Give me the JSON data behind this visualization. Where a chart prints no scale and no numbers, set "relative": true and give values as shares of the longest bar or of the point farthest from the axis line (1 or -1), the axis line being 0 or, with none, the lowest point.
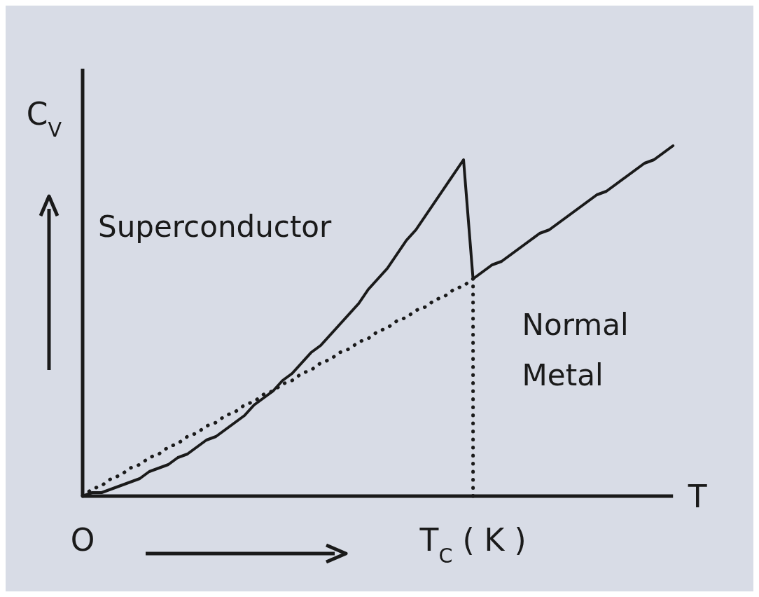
{
  "chart_data": {
    "type": "line",
    "relative": true,
    "xlabel": "T",
    "ylabel": "C$_{V}$",
    "categories": [
      "O",
      null,
      null,
      null,
      null,
      null,
      null,
      null,
      null,
      null,
      null,
      null,
      null,
      null,
      null,
      null,
      null,
      null,
      null,
      null,
      null,
      null,
      null,
      null,
      null,
      null,
      null,
      null,
      null,
      null,
      null,
      null,
      null,
      null,
      null,
      null,
      null,
      null,
      null,
      null,
      null,
      "T$_{C}$ ( K )",
      null,
      null,
      null,
      null,
      null,
      null,
      null,
      null,
      null,
      null,
      null,
      null,
      null,
      null,
      null,
      null,
      null,
      null,
      null,
      null,
      null
    ],
    "ref_lines": [
      {
        "axis": "x",
        "value": "T$_{C}$ ( K )",
        "line_style": "dotted",
        "color": "#1a1a1a"
      }
    ],
    "series": [
      {
        "name": "Superconductor",
        "color": "#1a1a1a",
        "values": [
          0,
          0.01,
          0.01,
          0.02,
          0.03,
          0.04,
          0.05,
          0.07,
          0.08,
          0.09,
          0.11,
          0.12,
          0.14,
          0.16,
          0.17,
          0.19,
          0.21,
          0.23,
          0.26,
          0.28,
          0.3,
          0.33,
          0.35,
          0.38,
          0.41,
          0.43,
          0.46,
          0.49,
          0.52,
          0.55,
          0.59,
          0.62,
          0.65,
          0.69,
          0.73,
          0.76,
          0.8,
          0.84,
          0.88,
          0.92,
          0.96,
          0.62,
          null,
          null,
          null,
          null,
          null,
          null,
          null,
          null,
          null,
          null,
          null,
          null,
          null,
          null,
          null,
          null,
          null,
          null,
          null,
          null,
          null
        ]
      },
      {
        "name": "Normal Metal",
        "color": "#1a1a1a",
        "values": [
          null,
          null,
          null,
          null,
          null,
          null,
          null,
          null,
          null,
          null,
          null,
          null,
          null,
          null,
          null,
          null,
          null,
          null,
          null,
          null,
          null,
          null,
          null,
          null,
          null,
          null,
          null,
          null,
          null,
          null,
          null,
          null,
          null,
          null,
          null,
          null,
          null,
          null,
          null,
          null,
          null,
          0.62,
          0.64,
          0.66,
          0.67,
          0.69,
          0.71,
          0.73,
          0.75,
          0.76,
          0.78,
          0.8,
          0.82,
          0.84,
          0.86,
          0.87,
          0.89,
          0.91,
          0.93,
          0.95,
          0.96,
          0.98,
          1.0
        ]
      },
      {
        "color": "#1a1a1a",
        "line_style": "dotted",
        "values": [
          0,
          0.02,
          0.03,
          0.05,
          0.06,
          0.08,
          0.09,
          0.11,
          0.12,
          0.14,
          0.15,
          0.17,
          0.18,
          0.2,
          0.21,
          0.23,
          0.24,
          0.26,
          0.27,
          0.29,
          0.3,
          0.32,
          0.33,
          0.35,
          0.36,
          0.38,
          0.39,
          0.41,
          0.42,
          0.44,
          0.45,
          0.47,
          0.48,
          0.5,
          0.51,
          0.53,
          0.54,
          0.56,
          0.57,
          0.59,
          0.6,
          0.62,
          null,
          null,
          null,
          null,
          null,
          null,
          null,
          null,
          null,
          null,
          null,
          null,
          null,
          null,
          null,
          null,
          null,
          null,
          null,
          null,
          null
        ]
      }
    ]
  }
}
